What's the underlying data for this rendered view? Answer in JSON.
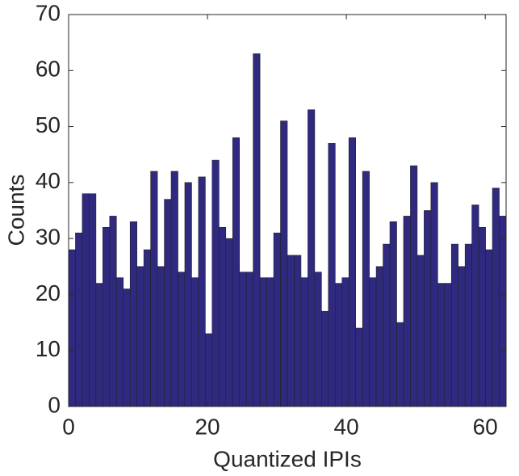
{
  "chart_data": {
    "type": "histogram",
    "xlabel": "Quantized IPIs",
    "ylabel": "Counts",
    "bins": [
      0,
      0.984375,
      1.96875,
      2.953125,
      3.9375,
      4.921875,
      5.90625,
      6.890625,
      7.875,
      8.859375,
      9.84375,
      10.828125,
      11.8125,
      12.796875,
      13.78125,
      14.765625,
      15.75,
      16.734375,
      17.71875,
      18.703125,
      19.6875,
      20.671875,
      21.65625,
      22.640625,
      23.625,
      24.609375,
      25.59375,
      26.578125,
      27.5625,
      28.546875,
      29.53125,
      30.515625,
      31.5,
      32.484375,
      33.46875,
      34.453125,
      35.4375,
      36.421875,
      37.40625,
      38.390625,
      39.375,
      40.359375,
      41.34375,
      42.328125,
      43.3125,
      44.296875,
      45.28125,
      46.265625,
      47.25,
      48.234375,
      49.21875,
      50.203125,
      51.1875,
      52.171875,
      53.15625,
      54.140625,
      55.125,
      56.109375,
      57.09375,
      58.078125,
      59.0625,
      60.046875,
      61.03125,
      62.015625,
      63
    ],
    "values": [
      28,
      31,
      38,
      38,
      22,
      32,
      34,
      23,
      21,
      33,
      25,
      28,
      42,
      25,
      37,
      42,
      24,
      40,
      23,
      41,
      13,
      44,
      32,
      30,
      48,
      24,
      24,
      63,
      23,
      23,
      31,
      51,
      27,
      27,
      23,
      53,
      24,
      17,
      47,
      22,
      23,
      48,
      14,
      42,
      23,
      25,
      29,
      33,
      15,
      34,
      43,
      27,
      35,
      40,
      22,
      22,
      29,
      25,
      29,
      36,
      32,
      28,
      39,
      34
    ],
    "color": "#2f2a80",
    "xlim": [
      0,
      63
    ],
    "xticks": [
      0,
      20,
      40,
      60
    ],
    "ylim": [
      0,
      70
    ],
    "yticks": [
      0,
      10,
      20,
      30,
      40,
      50,
      60,
      70
    ]
  }
}
